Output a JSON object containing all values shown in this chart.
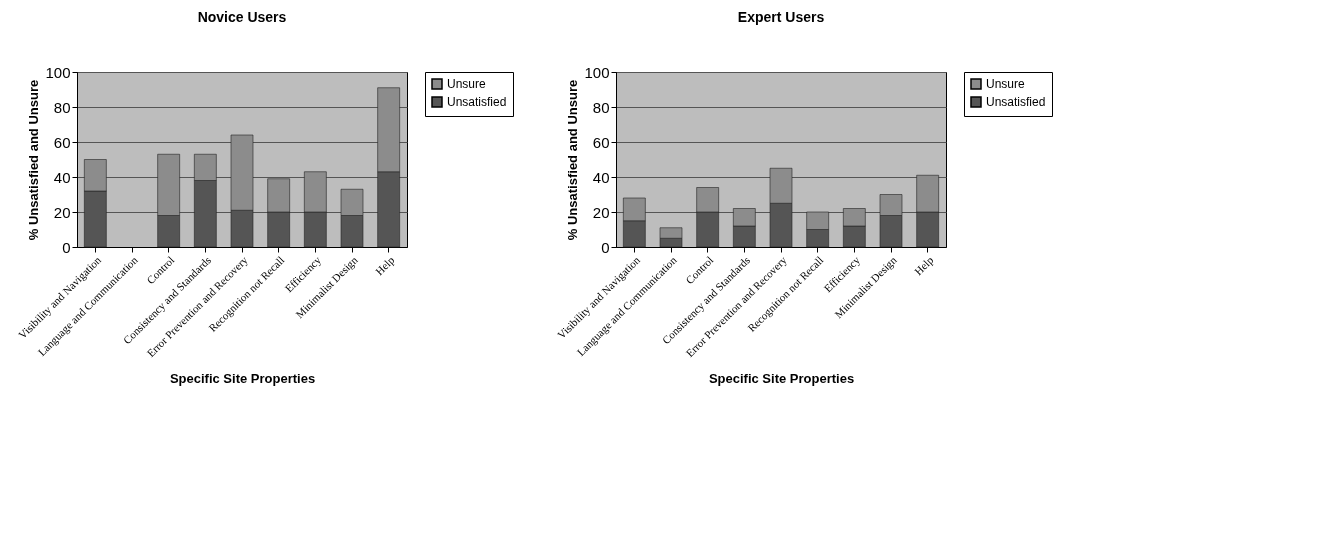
{
  "chart_data": [
    {
      "type": "bar",
      "title": "Novice Users",
      "xlabel": "Specific Site Properties",
      "ylabel": "% Unsatisfied and Unsure",
      "stacked": true,
      "categories": [
        "Visibility and Navigation",
        "Language and Communication",
        "Control",
        "Consistency and Standards",
        "Error Prevention and Recovery",
        "Recognition not Recall",
        "Efficiency",
        "Minimalist Design",
        "Help"
      ],
      "series": [
        {
          "name": "Unsatisfied",
          "color": "#555555",
          "values": [
            32,
            null,
            18,
            38,
            21,
            20,
            20,
            18,
            43
          ]
        },
        {
          "name": "Unsure",
          "color": "#8c8c8c",
          "values": [
            18,
            null,
            35,
            15,
            43,
            19,
            23,
            15,
            48
          ]
        }
      ],
      "ylim": [
        0,
        100
      ],
      "yticks": [
        0,
        20,
        40,
        60,
        80,
        100
      ],
      "grid": "y",
      "legend": "top right"
    },
    {
      "type": "bar",
      "title": "Expert Users",
      "xlabel": "Specific Site Properties",
      "ylabel": "% Unsatisfied and Unsure",
      "stacked": true,
      "categories": [
        "Visibility and Navigation",
        "Language and Communication",
        "Control",
        "Consistency and Standards",
        "Error Prevention and Recovery",
        "Recognition not Recall",
        "Efficiency",
        "Minimalist Design",
        "Help"
      ],
      "series": [
        {
          "name": "Unsatisfied",
          "color": "#555555",
          "values": [
            15,
            5,
            20,
            12,
            25,
            10,
            12,
            18,
            20
          ]
        },
        {
          "name": "Unsure",
          "color": "#8c8c8c",
          "values": [
            13,
            6,
            14,
            10,
            20,
            10,
            10,
            12,
            21
          ]
        }
      ],
      "ylim": [
        0,
        100
      ],
      "yticks": [
        0,
        20,
        40,
        60,
        80,
        100
      ],
      "grid": "y",
      "legend": "top right"
    }
  ]
}
